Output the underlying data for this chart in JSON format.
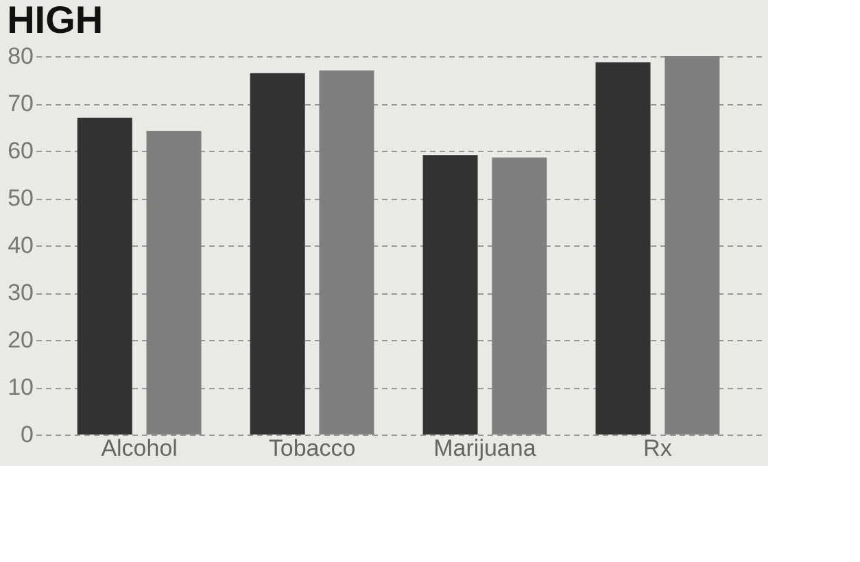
{
  "chart_data": {
    "type": "bar",
    "title": "HIGH",
    "categories": [
      "Alcohol",
      "Tobacco",
      "Marijuana",
      "Rx"
    ],
    "series": [
      {
        "color": "#333333",
        "values": [
          67,
          76.4,
          59.1,
          78.7
        ]
      },
      {
        "color": "#7f7f7f",
        "values": [
          64.2,
          77,
          58.6,
          80
        ]
      }
    ],
    "ylim": [
      0,
      80
    ],
    "yticks": [
      0,
      10,
      20,
      30,
      40,
      50,
      60,
      70,
      80
    ],
    "grid": "y",
    "legend": false
  }
}
